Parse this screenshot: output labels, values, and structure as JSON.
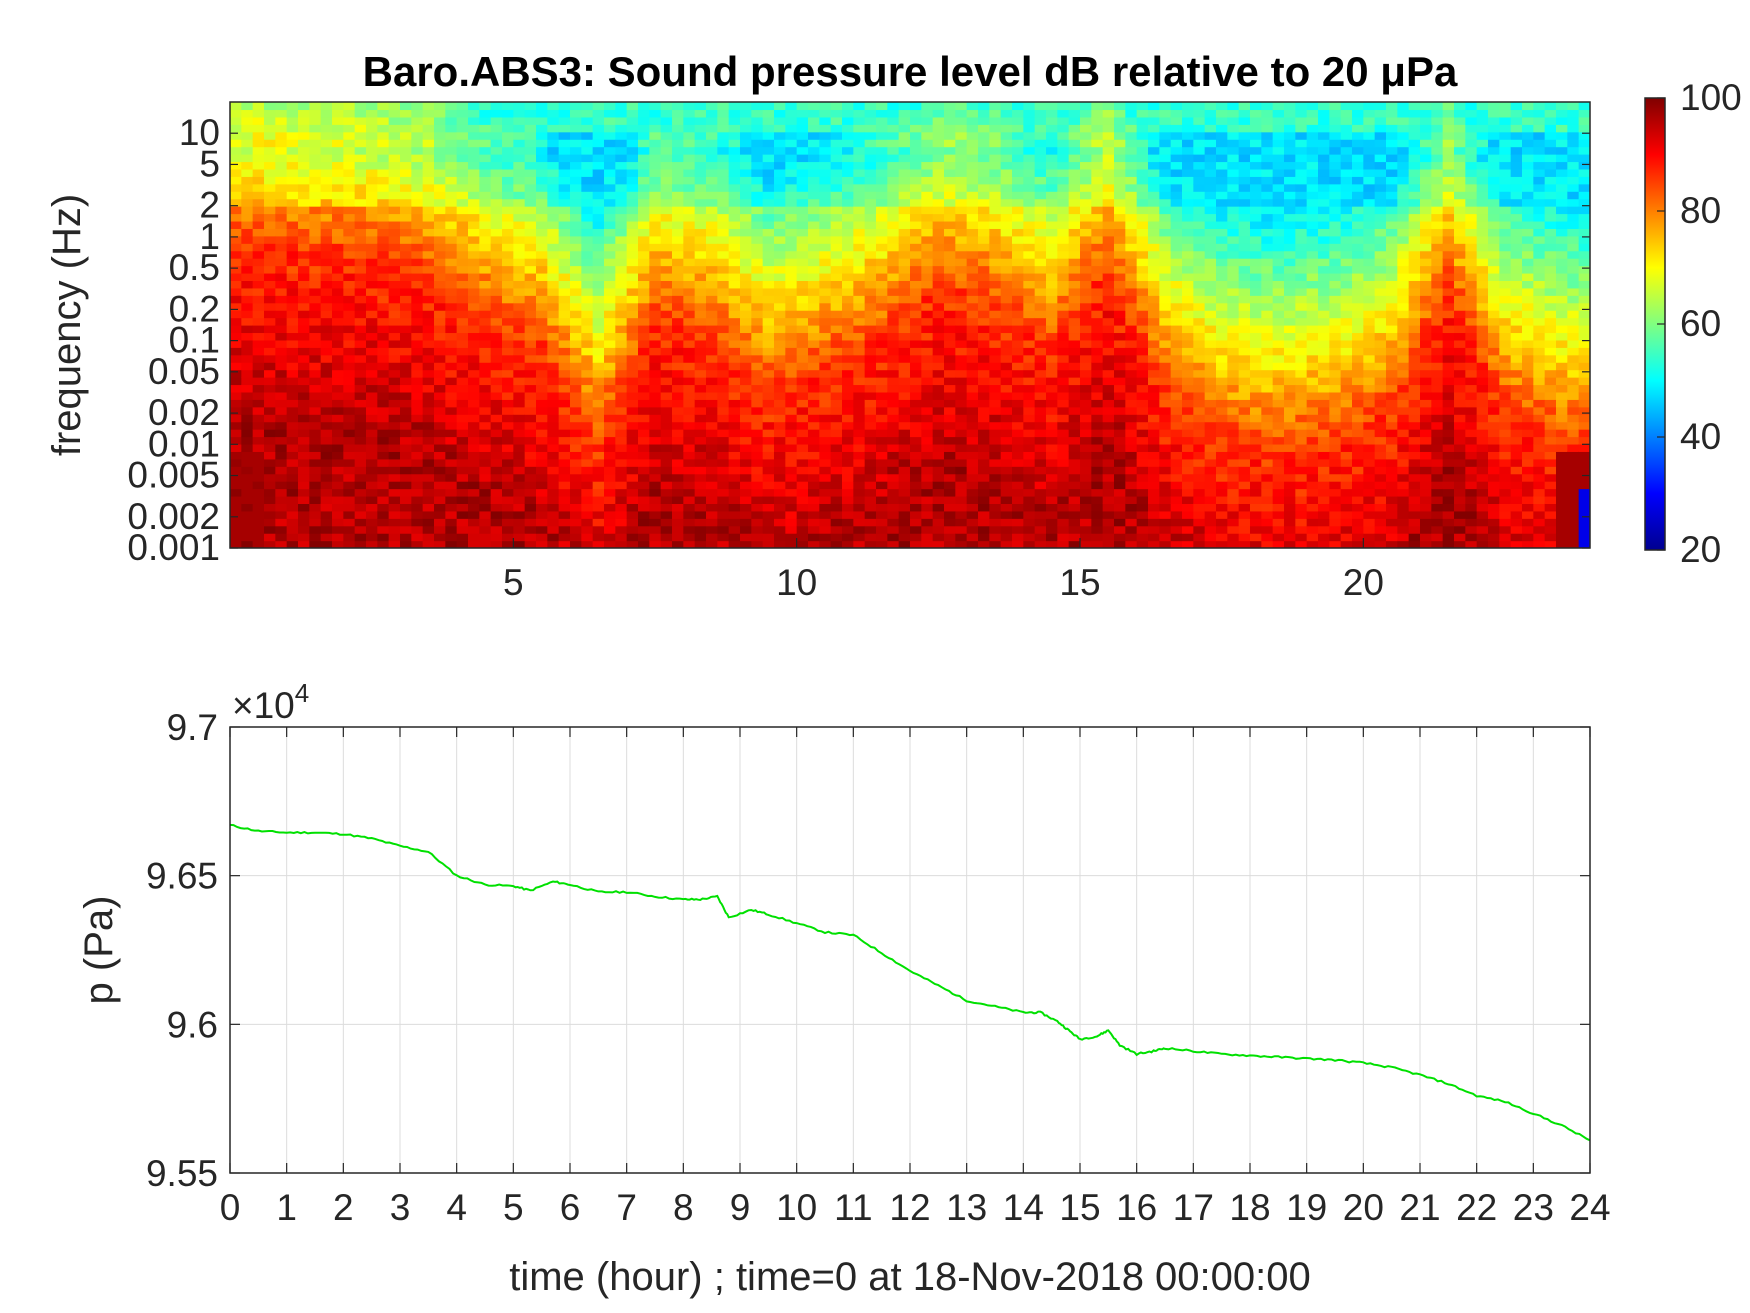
{
  "chart_data": [
    {
      "type": "heatmap",
      "title": "Baro.ABS3: Sound pressure level dB relative to 20 μPa",
      "xlabel": "",
      "ylabel": "frequency (Hz)",
      "xlim": [
        0,
        24
      ],
      "ylim": [
        0.001,
        20
      ],
      "yscale": "log",
      "x_ticks": [
        "5",
        "10",
        "15",
        "20"
      ],
      "y_ticks": [
        "0.001",
        "0.002",
        "0.005",
        "0.01",
        "0.02",
        "0.05",
        "0.1",
        "0.2",
        "0.5",
        "1",
        "2",
        "5",
        "10"
      ],
      "colormap": "jet",
      "colorbar": {
        "range": [
          20,
          100
        ],
        "ticks": [
          "20",
          "40",
          "60",
          "80",
          "100"
        ]
      },
      "grid": false,
      "columns": {
        "x": [
          0.5,
          1.5,
          2.5,
          3.5,
          4.5,
          5.5,
          6.5,
          7.5,
          8.5,
          9.5,
          10.5,
          11.5,
          12.5,
          13.5,
          14.5,
          15.5,
          16.5,
          17.5,
          18.5,
          19.5,
          20.5,
          21.5,
          22.5,
          23.5
        ],
        "top_freq_of_red_band_hz": [
          0.8,
          0.7,
          0.6,
          0.4,
          0.15,
          0.08,
          0.01,
          0.15,
          0.1,
          0.03,
          0.05,
          0.1,
          0.3,
          0.2,
          0.08,
          0.5,
          0.03,
          0.01,
          0.008,
          0.01,
          0.02,
          0.3,
          0.02,
          0.01
        ]
      }
    },
    {
      "type": "line",
      "title": "",
      "xlabel": "time (hour) ; time=0 at 18-Nov-2018 00:00:00",
      "ylabel": "p (Pa)",
      "y_exponent_label": "×10",
      "y_exponent_power": "4",
      "xlim": [
        0,
        24
      ],
      "ylim": [
        95500,
        97000
      ],
      "x_ticks": [
        "0",
        "1",
        "2",
        "3",
        "4",
        "5",
        "6",
        "7",
        "8",
        "9",
        "10",
        "11",
        "12",
        "13",
        "14",
        "15",
        "16",
        "17",
        "18",
        "19",
        "20",
        "21",
        "22",
        "23",
        "24"
      ],
      "y_ticks": [
        "9.55",
        "9.6",
        "9.65",
        "9.7"
      ],
      "grid": true,
      "line_color": "#00e000",
      "series": [
        {
          "x": [
            0,
            0.5,
            1,
            1.5,
            2,
            2.5,
            3,
            3.5,
            4,
            4.5,
            5,
            5.3,
            5.7,
            6,
            6.5,
            7,
            7.5,
            8,
            8.3,
            8.6,
            8.8,
            9.2,
            9.5,
            10,
            10.5,
            11,
            11.5,
            12,
            12.5,
            13,
            13.5,
            14,
            14.3,
            14.6,
            14.8,
            15,
            15.3,
            15.5,
            15.7,
            16,
            16.3,
            16.5,
            17,
            17.5,
            18,
            18.5,
            19,
            19.5,
            20,
            20.5,
            21,
            21.5,
            22,
            22.5,
            23,
            23.5,
            24
          ],
          "y": [
            96670,
            96650,
            96645,
            96645,
            96640,
            96625,
            96600,
            96580,
            96500,
            96470,
            96465,
            96450,
            96480,
            96470,
            96445,
            96445,
            96430,
            96420,
            96420,
            96430,
            96360,
            96385,
            96370,
            96340,
            96310,
            96300,
            96240,
            96180,
            96130,
            96080,
            96060,
            96040,
            96040,
            96010,
            95980,
            95950,
            95960,
            95980,
            95930,
            95900,
            95910,
            95920,
            95910,
            95900,
            95895,
            95890,
            95885,
            95880,
            95870,
            95855,
            95830,
            95800,
            95760,
            95740,
            95700,
            95660,
            95610
          ]
        }
      ]
    }
  ]
}
